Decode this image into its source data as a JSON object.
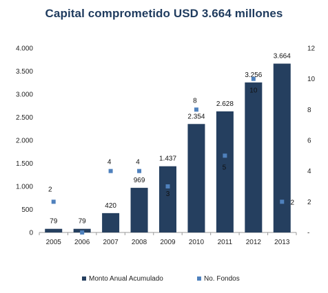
{
  "chart_data": {
    "type": "bar",
    "title": "Capital comprometido USD 3.664 millones",
    "categories": [
      "2005",
      "2006",
      "2007",
      "2008",
      "2009",
      "2010",
      "2011",
      "2012",
      "2013"
    ],
    "series": [
      {
        "name": "Monto Anual Acumulado",
        "kind": "bar",
        "axis": "left",
        "color": "#253f5f",
        "values": [
          79,
          79,
          420,
          969,
          1437,
          2354,
          2628,
          3256,
          3664
        ],
        "labels": [
          "79",
          "79",
          "420",
          "969",
          "1.437",
          "2.354",
          "2.628",
          "3.256",
          "3.664"
        ]
      },
      {
        "name": "No. Fondos",
        "kind": "scatter",
        "axis": "right",
        "color": "#4f81bd",
        "values": [
          2,
          0,
          4,
          4,
          3,
          8,
          5,
          10,
          2
        ],
        "labels": [
          "2",
          "",
          "4",
          "4",
          "3",
          "8",
          "5",
          "10",
          "2"
        ]
      }
    ],
    "y_left": {
      "min": 0,
      "max": 4000,
      "ticks": [
        0,
        500,
        1000,
        1500,
        2000,
        2500,
        3000,
        3500,
        4000
      ],
      "tick_labels": [
        "0",
        "500",
        "1.000",
        "1.500",
        "2.000",
        "2.500",
        "3.000",
        "3.500",
        "4.000"
      ]
    },
    "y_right": {
      "min": 0,
      "max": 12,
      "ticks": [
        0,
        2,
        4,
        6,
        8,
        10,
        12
      ],
      "tick_labels": [
        "-",
        "2",
        "4",
        "6",
        "8",
        "10",
        "12"
      ]
    },
    "grid": false,
    "legend_position": "bottom"
  }
}
